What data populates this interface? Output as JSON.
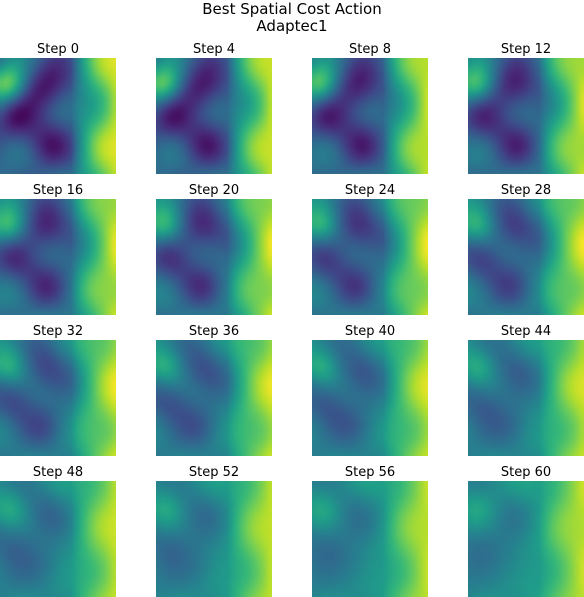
{
  "title": "Best Spatial Cost Action",
  "subtitle": "Adaptec1",
  "chart_data": {
    "type": "heatmap",
    "title": "Best Spatial Cost Action",
    "subtitle": "Adaptec1",
    "colormap": "viridis",
    "layout": {
      "rows": 4,
      "cols": 4
    },
    "panels": [
      {
        "label": "Step 0"
      },
      {
        "label": "Step 4"
      },
      {
        "label": "Step 8"
      },
      {
        "label": "Step 12"
      },
      {
        "label": "Step 16"
      },
      {
        "label": "Step 20"
      },
      {
        "label": "Step 24"
      },
      {
        "label": "Step 28"
      },
      {
        "label": "Step 32"
      },
      {
        "label": "Step 36"
      },
      {
        "label": "Step 40"
      },
      {
        "label": "Step 44"
      },
      {
        "label": "Step 48"
      },
      {
        "label": "Step 52"
      },
      {
        "label": "Step 56"
      },
      {
        "label": "Step 60"
      }
    ]
  }
}
